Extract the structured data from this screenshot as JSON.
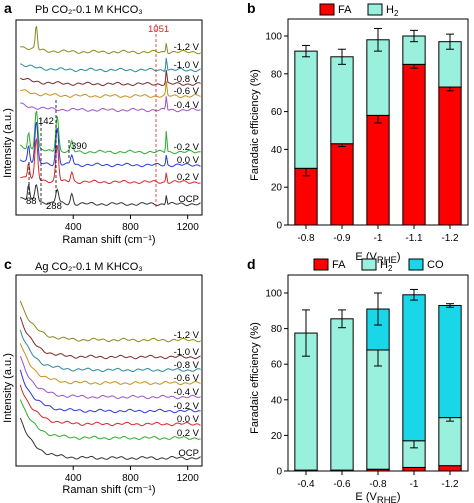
{
  "chart_data": [
    {
      "panel": "a",
      "type": "line",
      "title": "Pb CO₂-0.1 M KHCO₃",
      "xlabel": "Raman shift (cm⁻¹)",
      "ylabel": "Intensity (a.u.)",
      "xlim": [
        0,
        1300
      ],
      "xticks": [
        "400",
        "800",
        "1200"
      ],
      "series": [
        {
          "name": "-1.2 V",
          "color": "#8a8a1f"
        },
        {
          "name": "-1.0 V",
          "color": "#2a8a9a"
        },
        {
          "name": "-0.8 V",
          "color": "#7a2a2a"
        },
        {
          "name": "-0.6 V",
          "color": "#c8901a"
        },
        {
          "name": "-0.4 V",
          "color": "#9a55c8"
        },
        {
          "name": "-0.2 V",
          "color": "#2cae2c"
        },
        {
          "name": "0.0 V",
          "color": "#2a3ad8"
        },
        {
          "name": "0.2 V",
          "color": "#d82828"
        },
        {
          "name": "OCP",
          "color": "#333333"
        }
      ],
      "annotations": [
        "1051",
        "142",
        "390",
        "88",
        "288"
      ],
      "annotation_color_1051": "#e02020"
    },
    {
      "panel": "b",
      "type": "bar",
      "stacked": true,
      "xlabel": "E (V",
      "xlabel_sub": "RHE",
      "xlabel_end": ")",
      "ylabel": "Faradaic efficiency (%)",
      "ylim": [
        0,
        100
      ],
      "yticks": [
        "0",
        "20",
        "40",
        "60",
        "80",
        "100"
      ],
      "categories": [
        "-0.8",
        "-0.9",
        "-1",
        "-1.1",
        "-1.2"
      ],
      "series": [
        {
          "name": "FA",
          "color": "#ff0000",
          "values": [
            30,
            43,
            58,
            85,
            73
          ],
          "errors": [
            4,
            1.5,
            4,
            2,
            2
          ]
        },
        {
          "name": "H",
          "name_sub": "2",
          "color": "#99f0dc",
          "values": [
            62,
            46,
            40,
            15,
            24
          ],
          "total_errors": [
            3,
            4,
            6,
            3,
            4
          ]
        }
      ]
    },
    {
      "panel": "c",
      "type": "line",
      "title": "Ag CO₂-0.1 M KHCO₃",
      "xlabel": "Raman shift (cm⁻¹)",
      "ylabel": "Intensity (a.u.)",
      "xlim": [
        0,
        1300
      ],
      "xticks": [
        "400",
        "800",
        "1200"
      ],
      "series": [
        {
          "name": "-1.2 V",
          "color": "#8a8a1f"
        },
        {
          "name": "-1.0 V",
          "color": "#7a2a2a"
        },
        {
          "name": "-0.8 V",
          "color": "#2a8a9a"
        },
        {
          "name": "-0.6 V",
          "color": "#c8901a"
        },
        {
          "name": "-0.4 V",
          "color": "#9a55c8"
        },
        {
          "name": "-0.2 V",
          "color": "#2a3ad8"
        },
        {
          "name": "0.0 V",
          "color": "#d82828"
        },
        {
          "name": "0.2 V",
          "color": "#2cae2c"
        },
        {
          "name": "OCP",
          "color": "#333333"
        }
      ]
    },
    {
      "panel": "d",
      "type": "bar",
      "stacked": true,
      "xlabel": "E (V",
      "xlabel_sub": "RHE",
      "xlabel_end": ")",
      "ylabel": "Faradaic efficiency (%)",
      "ylim": [
        0,
        100
      ],
      "yticks": [
        "0",
        "20",
        "40",
        "60",
        "80",
        "100"
      ],
      "categories": [
        "-0.4",
        "-0.6",
        "-0.8",
        "-1",
        "-1.2"
      ],
      "series": [
        {
          "name": "FA",
          "color": "#ff0000",
          "values": [
            0.5,
            0.5,
            1,
            2,
            3
          ]
        },
        {
          "name": "H",
          "name_sub": "2",
          "color": "#99f0dc",
          "values": [
            77,
            85,
            67,
            15,
            27
          ],
          "total_errors": [
            13,
            5,
            9,
            4,
            2
          ]
        },
        {
          "name": "CO",
          "color": "#19d7e8",
          "values": [
            0,
            0,
            23,
            82,
            63
          ],
          "errors": [
            0,
            0,
            9,
            3,
            1
          ]
        }
      ]
    }
  ]
}
